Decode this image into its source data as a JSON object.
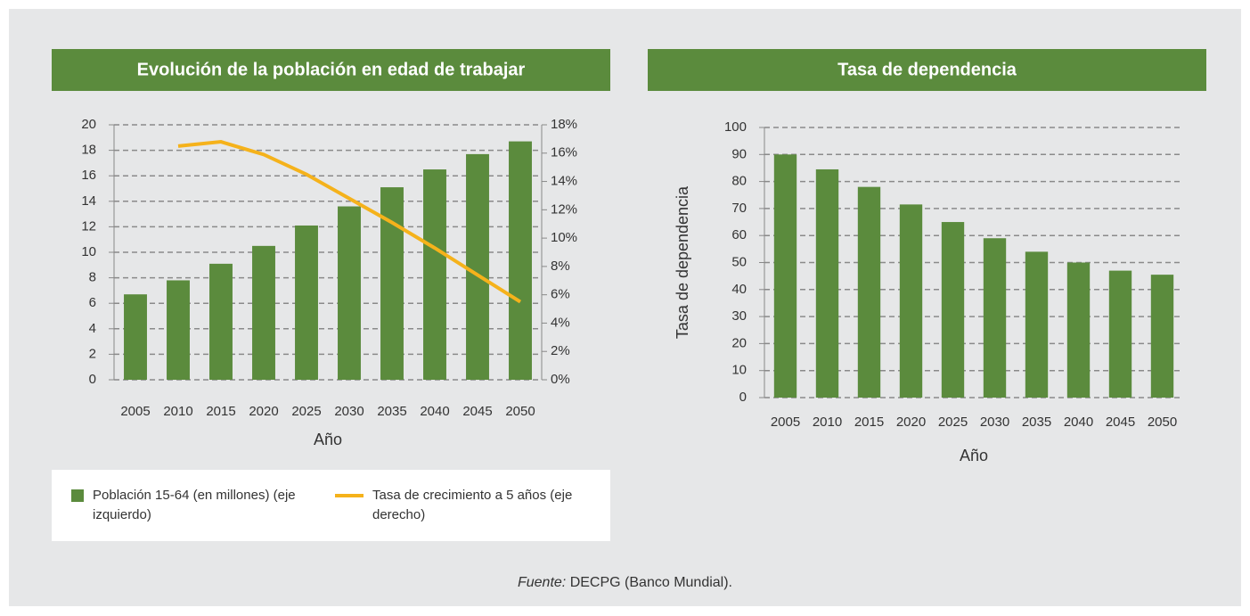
{
  "chart_data": [
    {
      "type": "bar",
      "title": "Evolución de la población en edad de trabajar",
      "categories": [
        "2005",
        "2010",
        "2015",
        "2020",
        "2025",
        "2030",
        "2035",
        "2040",
        "2045",
        "2050"
      ],
      "xlabel": "Año",
      "series": [
        {
          "name": "Población 15-64 (en millones) (eje izquierdo)",
          "color": "#5b8b3d",
          "values": [
            6.7,
            7.8,
            9.1,
            10.5,
            12.1,
            13.6,
            15.1,
            16.5,
            17.7,
            18.7
          ]
        },
        {
          "name": "Tasa de crecimiento a 5 años (eje derecho)",
          "color": "#f5b21b",
          "type": "line",
          "axis": "y2",
          "values": [
            null,
            16.5,
            16.8,
            15.9,
            14.5,
            12.8,
            11.1,
            9.3,
            7.4,
            5.5
          ]
        }
      ],
      "ylim": [
        0,
        20
      ],
      "yticks": [
        0,
        2,
        4,
        6,
        8,
        10,
        12,
        14,
        16,
        18,
        20
      ],
      "y2lim": [
        0,
        18
      ],
      "y2ticks": [
        {
          "value": 0,
          "label": "0%"
        },
        {
          "value": 2,
          "label": "2%"
        },
        {
          "value": 4,
          "label": "4%"
        },
        {
          "value": 6,
          "label": "6%"
        },
        {
          "value": 8,
          "label": "8%"
        },
        {
          "value": 10,
          "label": "10%"
        },
        {
          "value": 12,
          "label": "12%"
        },
        {
          "value": 14,
          "label": "14%"
        },
        {
          "value": 16,
          "label": "16%"
        },
        {
          "value": 18,
          "label": "18%"
        }
      ],
      "grid": true
    },
    {
      "type": "bar",
      "title": "Tasa de dependencia",
      "categories": [
        "2005",
        "2010",
        "2015",
        "2020",
        "2025",
        "2030",
        "2035",
        "2040",
        "2045",
        "2050"
      ],
      "xlabel": "Año",
      "ylabel": "Tasa de dependencia",
      "series": [
        {
          "name": "Tasa de dependencia",
          "color": "#5b8b3d",
          "values": [
            90,
            84.5,
            78,
            71.5,
            65,
            59,
            54,
            50,
            47,
            45.5
          ]
        }
      ],
      "ylim": [
        0,
        100
      ],
      "yticks": [
        0,
        10,
        20,
        30,
        40,
        50,
        60,
        70,
        80,
        90,
        100
      ],
      "grid": true
    }
  ],
  "source": {
    "label": "Fuente:",
    "text": "DECPG (Banco Mundial)."
  }
}
